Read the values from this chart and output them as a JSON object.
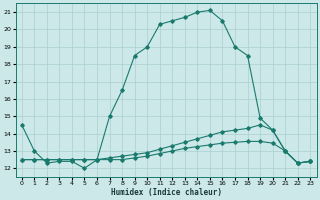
{
  "xlabel": "Humidex (Indice chaleur)",
  "bg_color": "#cce8e8",
  "grid_color": "#aacfcf",
  "line_color": "#1a7a6e",
  "xlim": [
    -0.5,
    23.5
  ],
  "ylim": [
    11.5,
    21.5
  ],
  "xticks": [
    0,
    1,
    2,
    3,
    4,
    5,
    6,
    7,
    8,
    9,
    10,
    11,
    12,
    13,
    14,
    15,
    16,
    17,
    18,
    19,
    20,
    21,
    22,
    23
  ],
  "yticks": [
    12,
    13,
    14,
    15,
    16,
    17,
    18,
    19,
    20,
    21
  ],
  "series1_y": [
    14.5,
    13.0,
    12.3,
    12.4,
    12.4,
    12.0,
    12.5,
    15.0,
    16.5,
    18.5,
    19.0,
    20.3,
    20.5,
    20.7,
    21.0,
    21.1,
    20.5,
    19.0,
    18.5,
    14.9,
    14.2,
    13.0,
    12.3,
    12.4
  ],
  "series2_y": [
    12.5,
    12.5,
    12.5,
    12.5,
    12.5,
    12.5,
    12.5,
    12.6,
    12.7,
    12.8,
    12.9,
    13.1,
    13.3,
    13.5,
    13.7,
    13.9,
    14.1,
    14.2,
    14.3,
    14.5,
    14.2,
    13.0,
    12.3,
    12.4
  ],
  "series3_y": [
    12.5,
    12.5,
    12.5,
    12.5,
    12.5,
    12.5,
    12.5,
    12.5,
    12.5,
    12.6,
    12.7,
    12.85,
    13.0,
    13.15,
    13.25,
    13.35,
    13.45,
    13.5,
    13.55,
    13.55,
    13.45,
    13.0,
    12.3,
    12.4
  ]
}
